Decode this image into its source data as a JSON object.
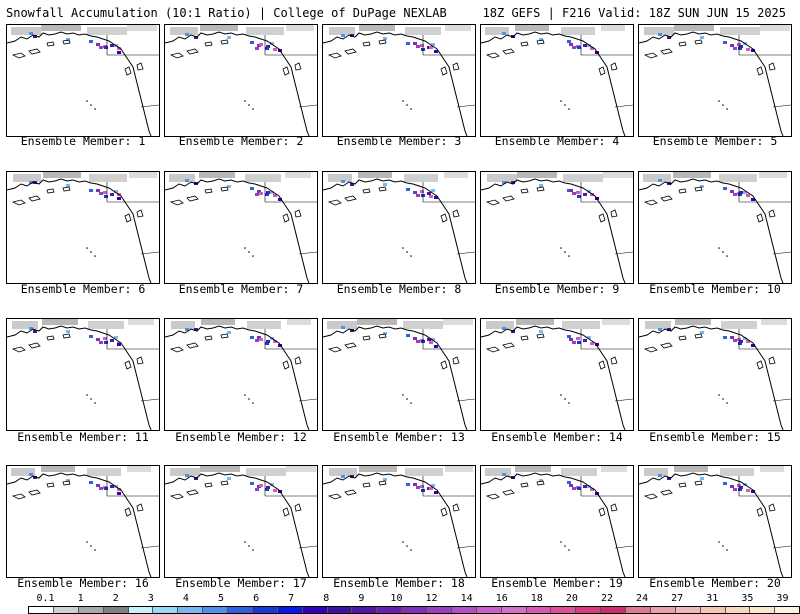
{
  "header": {
    "title_left": "Snowfall Accumulation (10:1 Ratio) | College of DuPage NEXLAB",
    "title_right": "18Z GEFS | F216 Valid: 18Z SUN JUN 15 2025"
  },
  "panels": [
    {
      "label": "Ensemble Member: 1"
    },
    {
      "label": "Ensemble Member: 2"
    },
    {
      "label": "Ensemble Member: 3"
    },
    {
      "label": "Ensemble Member: 4"
    },
    {
      "label": "Ensemble Member: 5"
    },
    {
      "label": "Ensemble Member: 6"
    },
    {
      "label": "Ensemble Member: 7"
    },
    {
      "label": "Ensemble Member: 8"
    },
    {
      "label": "Ensemble Member: 9"
    },
    {
      "label": "Ensemble Member: 10"
    },
    {
      "label": "Ensemble Member: 11"
    },
    {
      "label": "Ensemble Member: 12"
    },
    {
      "label": "Ensemble Member: 13"
    },
    {
      "label": "Ensemble Member: 14"
    },
    {
      "label": "Ensemble Member: 15"
    },
    {
      "label": "Ensemble Member: 16"
    },
    {
      "label": "Ensemble Member: 17"
    },
    {
      "label": "Ensemble Member: 18"
    },
    {
      "label": "Ensemble Member: 19"
    },
    {
      "label": "Ensemble Member: 20"
    }
  ],
  "colorbar": {
    "labels": [
      "0.1",
      "1",
      "2",
      "3",
      "4",
      "5",
      "6",
      "7",
      "8",
      "9",
      "10",
      "12",
      "14",
      "16",
      "18",
      "20",
      "22",
      "24",
      "27",
      "31",
      "35",
      "39"
    ],
    "colors": [
      "#ffffff",
      "#d0d0d0",
      "#a8a8a8",
      "#808080",
      "#c8f0ff",
      "#9ad8f8",
      "#78b8f0",
      "#5090e8",
      "#3060e0",
      "#1838d8",
      "#0818e8",
      "#3000c0",
      "#3c14a0",
      "#5018a8",
      "#6820b0",
      "#8030b8",
      "#9840c0",
      "#b050c8",
      "#c860c8",
      "#d070c8",
      "#d85ab0",
      "#e0509a",
      "#d83c80",
      "#c83070",
      "#e07890",
      "#eaa0a8",
      "#f0b8b8",
      "#f4c8b8",
      "#f8d8c0",
      "#fce8d0",
      "#fff4e0"
    ]
  }
}
